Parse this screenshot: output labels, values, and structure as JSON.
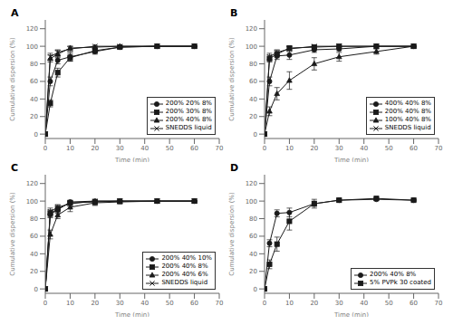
{
  "chart_data": [
    {
      "type": "line",
      "title": "A",
      "x_label": "Time (min)",
      "y_label": "Cumulative dispersion (%)",
      "x": [
        0,
        2,
        5,
        10,
        20,
        30,
        45,
        60
      ],
      "xlim": [
        0,
        70
      ],
      "xticks": [
        0,
        10,
        20,
        30,
        40,
        50,
        60,
        70
      ],
      "ylim": [
        -5,
        130
      ],
      "yticks": [
        0,
        20,
        40,
        60,
        80,
        100,
        120
      ],
      "grid": false,
      "legend": "lower right",
      "series": [
        {
          "name": "200% 20% 8%",
          "color": "#1a1a1a",
          "marker": "circle",
          "values": [
            0,
            60,
            84,
            88,
            94,
            99,
            100,
            100
          ],
          "errors": [
            0,
            5,
            4,
            5,
            3,
            1,
            0.5,
            0.5
          ]
        },
        {
          "name": "200% 30% 8%",
          "color": "#1a1a1a",
          "marker": "square",
          "values": [
            0,
            35,
            70,
            87,
            95,
            99,
            100,
            100
          ],
          "errors": [
            0,
            4,
            5,
            4,
            3,
            1,
            0.5,
            0.5
          ]
        },
        {
          "name": "200% 40% 8%",
          "color": "#1a1a1a",
          "marker": "triangle",
          "values": [
            0,
            86,
            91,
            98,
            99,
            100,
            100,
            100
          ],
          "errors": [
            0,
            4,
            4,
            2,
            1,
            0.5,
            0.5,
            0.5
          ]
        },
        {
          "name": "SNEDDS liquid",
          "color": "#1a1a1a",
          "marker": "cross",
          "values": [
            0,
            88,
            93,
            97,
            100,
            100,
            100,
            100
          ],
          "errors": [
            0,
            4,
            3,
            3,
            1,
            0.5,
            0.5,
            0.5
          ]
        }
      ]
    },
    {
      "type": "line",
      "title": "B",
      "x_label": "Time (min)",
      "y_label": "Cumulative dispersion (%)",
      "x": [
        0,
        2,
        5,
        10,
        20,
        30,
        45,
        60
      ],
      "xlim": [
        0,
        70
      ],
      "xticks": [
        0,
        10,
        20,
        30,
        40,
        50,
        60,
        70
      ],
      "ylim": [
        -5,
        130
      ],
      "yticks": [
        0,
        20,
        40,
        60,
        80,
        100,
        120
      ],
      "grid": false,
      "legend": "lower right",
      "series": [
        {
          "name": "400% 40% 8%",
          "color": "#1a1a1a",
          "marker": "circle",
          "values": [
            0,
            60,
            89,
            90,
            96,
            97,
            100,
            100
          ],
          "errors": [
            0,
            5,
            4,
            5,
            3,
            2,
            0.5,
            0.5
          ]
        },
        {
          "name": "200% 40% 8%",
          "color": "#1a1a1a",
          "marker": "square",
          "values": [
            0,
            86,
            91,
            98,
            99,
            100,
            100,
            100
          ],
          "errors": [
            0,
            4,
            4,
            2,
            1,
            0.5,
            0.5,
            0.5
          ]
        },
        {
          "name": "100% 40% 8%",
          "color": "#1a1a1a",
          "marker": "triangle",
          "values": [
            0,
            26,
            46,
            61,
            80,
            88,
            94,
            100
          ],
          "errors": [
            0,
            5,
            7,
            10,
            7,
            5,
            3,
            1
          ]
        },
        {
          "name": "SNEDDS liquid",
          "color": "#1a1a1a",
          "marker": "cross",
          "values": [
            0,
            88,
            93,
            97,
            100,
            100,
            100,
            100
          ],
          "errors": [
            0,
            4,
            3,
            3,
            1,
            0.5,
            0.5,
            0.5
          ]
        }
      ]
    },
    {
      "type": "line",
      "title": "C",
      "x_label": "Time (min)",
      "y_label": "Cumulative dispersion (%)",
      "x": [
        0,
        2,
        5,
        10,
        20,
        30,
        45,
        60
      ],
      "xlim": [
        0,
        70
      ],
      "xticks": [
        0,
        10,
        20,
        30,
        40,
        50,
        60,
        70
      ],
      "ylim": [
        -5,
        130
      ],
      "yticks": [
        0,
        20,
        40,
        60,
        80,
        100,
        120
      ],
      "grid": false,
      "legend": "lower right",
      "series": [
        {
          "name": "200% 40% 10%",
          "color": "#1a1a1a",
          "marker": "circle",
          "values": [
            0,
            85,
            90,
            99,
            100,
            100,
            100,
            100
          ],
          "errors": [
            0,
            4,
            4,
            2,
            1,
            0.5,
            0.5,
            0.5
          ]
        },
        {
          "name": "200% 40% 8%",
          "color": "#1a1a1a",
          "marker": "square",
          "values": [
            0,
            86,
            91,
            98,
            99,
            100,
            100,
            100
          ],
          "errors": [
            0,
            4,
            4,
            2,
            1,
            0.5,
            0.5,
            0.5
          ]
        },
        {
          "name": "200% 40% 6%",
          "color": "#1a1a1a",
          "marker": "triangle",
          "values": [
            0,
            62,
            84,
            93,
            98,
            99,
            100,
            100
          ],
          "errors": [
            0,
            5,
            4,
            5,
            3,
            1,
            0.5,
            0.5
          ]
        },
        {
          "name": "SNEDDS liquid",
          "color": "#1a1a1a",
          "marker": "cross",
          "values": [
            0,
            88,
            93,
            97,
            100,
            100,
            100,
            100
          ],
          "errors": [
            0,
            4,
            3,
            3,
            1,
            0.5,
            0.5,
            0.5
          ]
        }
      ]
    },
    {
      "type": "line",
      "title": "D",
      "x_label": "Time (min)",
      "y_label": "Cumulative dispersion (%)",
      "x": [
        0,
        2,
        5,
        10,
        20,
        30,
        45,
        60
      ],
      "xlim": [
        0,
        70
      ],
      "xticks": [
        0,
        10,
        20,
        30,
        40,
        50,
        60,
        70
      ],
      "ylim": [
        -5,
        130
      ],
      "yticks": [
        0,
        20,
        40,
        60,
        80,
        100,
        120
      ],
      "grid": false,
      "legend": "lower right",
      "series": [
        {
          "name": "200% 40% 8%",
          "color": "#1a1a1a",
          "marker": "circle",
          "values": [
            0,
            52,
            86,
            87,
            97,
            101,
            102,
            101
          ],
          "errors": [
            0,
            4,
            4,
            5,
            3,
            1,
            1,
            1
          ]
        },
        {
          "name": "5% PVPk 30 coated",
          "color": "#1a1a1a",
          "marker": "square",
          "values": [
            0,
            28,
            51,
            77,
            97,
            101,
            103,
            101
          ],
          "errors": [
            0,
            5,
            8,
            10,
            5,
            2,
            1,
            1
          ]
        }
      ]
    }
  ]
}
